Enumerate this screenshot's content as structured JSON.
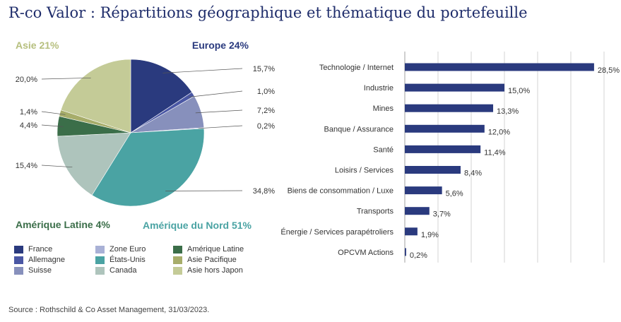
{
  "title": "R-co Valor : Répartitions géographique et thématique du portefeuille",
  "source": "Source : Rothschild & Co Asset Management, 31/03/2023.",
  "chart_data": [
    {
      "type": "pie",
      "region_labels": [
        {
          "label": "Europe 24%",
          "color": "#2a3a7e"
        },
        {
          "label": "Asie 21%",
          "color": "#b6bf7e"
        },
        {
          "label": "Amérique Latine 4%",
          "color": "#3b6e49"
        },
        {
          "label": "Amérique du Nord 51%",
          "color": "#4aa3a3"
        }
      ],
      "slices": [
        {
          "name": "France",
          "value": 15.7,
          "value_label": "15,7%",
          "color": "#2a3a7e"
        },
        {
          "name": "Allemagne",
          "value": 1.0,
          "value_label": "1,0%",
          "color": "#4a57a4"
        },
        {
          "name": "Suisse",
          "value": 7.2,
          "value_label": "7,2%",
          "color": "#8790bc"
        },
        {
          "name": "Zone Euro",
          "value": 0.2,
          "value_label": "0,2%",
          "color": "#a9b1d6"
        },
        {
          "name": "États-Unis",
          "value": 34.8,
          "value_label": "34,8%",
          "color": "#4aa3a3"
        },
        {
          "name": "Canada",
          "value": 15.4,
          "value_label": "15,4%",
          "color": "#aec4bc"
        },
        {
          "name": "Amérique Latine",
          "value": 4.4,
          "value_label": "4,4%",
          "color": "#3b6e49"
        },
        {
          "name": "Asie Pacifique",
          "value": 1.4,
          "value_label": "1,4%",
          "color": "#a7ad6a"
        },
        {
          "name": "Asie hors Japon",
          "value": 20.0,
          "value_label": "20,0%",
          "color": "#c4cb97"
        }
      ],
      "legend": [
        "France",
        "Zone Euro",
        "Amérique Latine",
        "Allemagne",
        "États-Unis",
        "Asie Pacifique",
        "Suisse",
        "Canada",
        "Asie hors Japon"
      ]
    },
    {
      "type": "bar",
      "orientation": "horizontal",
      "bar_color": "#2a3a7e",
      "grid": true,
      "categories": [
        "Technologie / Internet",
        "Industrie",
        "Mines",
        "Banque / Assurance",
        "Santé",
        "Loisirs / Services",
        "Biens de consommation / Luxe",
        "Transports",
        "Énergie / Services parapétroliers",
        "OPCVM Actions"
      ],
      "values": [
        28.5,
        15.0,
        13.3,
        12.0,
        11.4,
        8.4,
        5.6,
        3.7,
        1.9,
        0.2
      ],
      "value_labels": [
        "28,5%",
        "15,0%",
        "13,3%",
        "12,0%",
        "11,4%",
        "8,4%",
        "5,6%",
        "3,7%",
        "1,9%",
        "0,2%"
      ],
      "xlim": [
        0,
        30
      ]
    }
  ]
}
